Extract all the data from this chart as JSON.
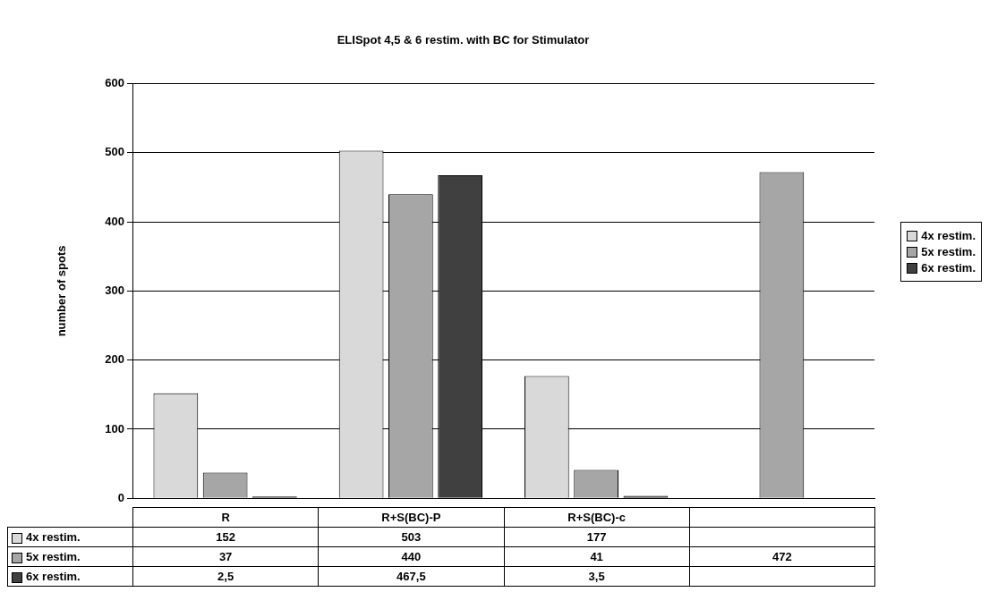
{
  "chart_data": {
    "type": "bar",
    "title": "ELISpot 4,5 & 6 restim. with BC for Stimulator",
    "ylabel": "number of spots",
    "categories": [
      "R",
      "R+S(BC)-P",
      "R+S(BC)-c",
      null
    ],
    "series": [
      {
        "name": "4x restim.",
        "color": "#d9d9d9",
        "values": [
          152,
          503,
          177,
          null
        ],
        "value_labels": [
          "152",
          "503",
          "177",
          null
        ]
      },
      {
        "name": "5x restim.",
        "color": "#a6a6a6",
        "values": [
          37,
          440,
          41,
          472
        ],
        "value_labels": [
          "37",
          "440",
          "41",
          "472"
        ]
      },
      {
        "name": "6x restim.",
        "color": "#404040",
        "values": [
          2.5,
          467.5,
          3.5,
          null
        ],
        "value_labels": [
          "2,5",
          "467,5",
          "3,5",
          null
        ]
      }
    ],
    "ylim": [
      0,
      600
    ],
    "yticks": [
      0,
      100,
      200,
      300,
      400,
      500,
      600
    ],
    "grid": "y",
    "legend": "right"
  }
}
